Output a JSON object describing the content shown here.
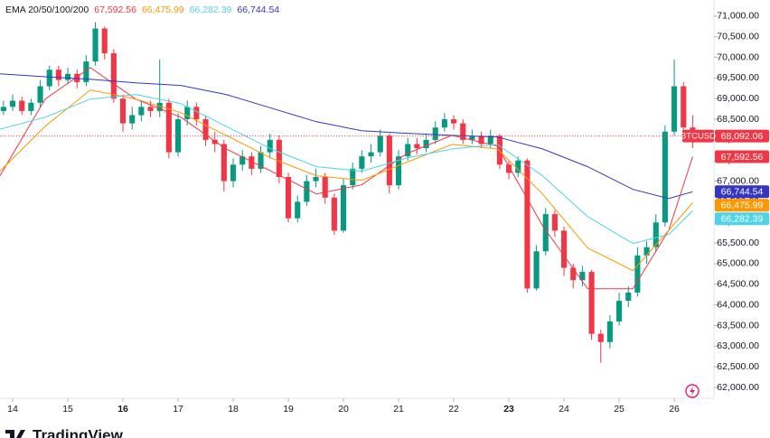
{
  "chart_data": {
    "type": "candlestick",
    "symbol": "BTCUSD",
    "indicator": "EMA 20/50/100/200",
    "brand": "TradingView",
    "x": [
      13.833,
      14,
      14.167,
      14.333,
      14.5,
      14.667,
      14.833,
      15,
      15.167,
      15.333,
      15.5,
      15.667,
      15.833,
      16,
      16.167,
      16.333,
      16.5,
      16.667,
      16.833,
      17,
      17.167,
      17.333,
      17.5,
      17.667,
      17.833,
      18,
      18.167,
      18.333,
      18.5,
      18.667,
      18.833,
      19,
      19.167,
      19.333,
      19.5,
      19.667,
      19.833,
      20,
      20.167,
      20.333,
      20.5,
      20.667,
      20.833,
      21,
      21.167,
      21.333,
      21.5,
      21.667,
      21.833,
      22,
      22.167,
      22.333,
      22.5,
      22.667,
      22.833,
      23,
      23.167,
      23.333,
      23.5,
      23.667,
      23.833,
      24,
      24.167,
      24.333,
      24.5,
      24.667,
      24.833,
      25,
      25.167,
      25.333,
      25.5,
      25.667,
      25.833,
      26,
      26.167,
      26.333
    ],
    "open": [
      68700,
      68800,
      68950,
      68700,
      68900,
      69300,
      69700,
      69450,
      69600,
      69400,
      69900,
      70700,
      70100,
      69000,
      68400,
      68600,
      68800,
      68700,
      68900,
      67700,
      68500,
      68800,
      68500,
      68000,
      67900,
      67000,
      67400,
      67600,
      67300,
      67700,
      68000,
      67100,
      66100,
      66500,
      67000,
      67100,
      66600,
      65800,
      66900,
      67300,
      67600,
      67700,
      68100,
      66900,
      67600,
      67900,
      67800,
      68000,
      68300,
      68500,
      68400,
      68000,
      68100,
      67900,
      68100,
      67400,
      67200,
      67500,
      64400,
      65300,
      66200,
      65800,
      64900,
      64600,
      64800,
      63300,
      63100,
      63600,
      64100,
      64300,
      65200,
      65400,
      66000,
      68200,
      69300,
      68300
    ],
    "high": [
      68950,
      69100,
      69050,
      69000,
      69450,
      69800,
      69800,
      69750,
      69700,
      70050,
      70850,
      70750,
      70200,
      69100,
      68800,
      68950,
      68950,
      69950,
      69000,
      68650,
      68950,
      68900,
      68600,
      68200,
      68000,
      67550,
      67750,
      67700,
      67850,
      68150,
      68100,
      67200,
      66650,
      67150,
      67300,
      67200,
      66700,
      67050,
      67450,
      67750,
      67900,
      68250,
      68150,
      67750,
      68050,
      68050,
      68150,
      68450,
      68650,
      68600,
      68500,
      68250,
      68200,
      68250,
      68150,
      67500,
      67600,
      67550,
      65450,
      66350,
      66300,
      65900,
      65000,
      64950,
      64850,
      63400,
      63750,
      64300,
      64450,
      65400,
      65550,
      66200,
      68350,
      69950,
      69400,
      68600
    ],
    "low": [
      68600,
      68700,
      68600,
      68600,
      68800,
      69200,
      69300,
      69350,
      69250,
      69300,
      69800,
      69950,
      68900,
      68200,
      68250,
      68450,
      68550,
      68550,
      67550,
      67600,
      68350,
      68350,
      67850,
      67700,
      66750,
      66850,
      67250,
      67150,
      67200,
      67550,
      66950,
      66000,
      66000,
      66400,
      66850,
      66450,
      65700,
      65750,
      66800,
      67200,
      67450,
      67600,
      66700,
      66800,
      67500,
      67650,
      67700,
      67900,
      68200,
      68250,
      67900,
      67900,
      67800,
      67800,
      67300,
      67050,
      67100,
      64300,
      64350,
      65200,
      65650,
      64700,
      64400,
      64450,
      63150,
      62600,
      62950,
      63500,
      63950,
      64200,
      65000,
      65300,
      65900,
      68100,
      68150,
      67800
    ],
    "close": [
      68800,
      68950,
      68700,
      68900,
      69300,
      69700,
      69450,
      69600,
      69400,
      69900,
      70700,
      70100,
      69000,
      68400,
      68600,
      68800,
      68700,
      68900,
      67700,
      68500,
      68800,
      68500,
      68000,
      67900,
      67000,
      67400,
      67600,
      67300,
      67700,
      68000,
      67100,
      66100,
      66500,
      67000,
      67100,
      66600,
      65800,
      66900,
      67300,
      67600,
      67700,
      68100,
      66900,
      67600,
      67900,
      67800,
      68000,
      68300,
      68500,
      68400,
      68000,
      68100,
      67900,
      68100,
      67400,
      67200,
      67500,
      64400,
      65300,
      66200,
      65800,
      64900,
      64600,
      64800,
      63300,
      63100,
      63600,
      64100,
      64300,
      65200,
      65400,
      66000,
      68200,
      69300,
      68300,
      68092.06
    ],
    "value_labels": [
      null,
      null,
      null,
      null,
      null,
      null,
      null,
      null,
      null,
      null,
      null,
      null,
      null,
      null,
      null,
      null,
      null,
      null,
      null,
      null,
      null,
      null,
      null,
      null,
      null,
      null,
      null,
      null,
      null,
      null,
      null,
      null,
      null,
      null,
      null,
      null,
      null,
      null,
      null,
      null,
      null,
      null,
      null,
      null,
      null,
      null,
      null,
      null,
      null,
      null,
      null,
      null,
      null,
      null,
      null,
      null,
      null,
      null,
      null,
      null,
      null,
      null,
      null,
      null,
      null,
      null,
      null,
      null,
      null,
      null,
      null,
      null,
      null,
      null,
      null,
      "68,092.06"
    ],
    "up_color": "#089981",
    "down_color": "#f23645",
    "last_price_line": true,
    "series": [
      {
        "color": "#f23645",
        "x": [
          13.77,
          14.59,
          15.41,
          16.23,
          17.05,
          17.87,
          18.69,
          19.51,
          20.33,
          21.15,
          21.97,
          22.79,
          23.61,
          24.43,
          25.25,
          25.9,
          26.333
        ],
        "values": [
          67130,
          68990,
          69750,
          68990,
          68550,
          67780,
          67240,
          66690,
          66910,
          67670,
          68110,
          67850,
          65920,
          64390,
          64390,
          65810,
          67592.56
        ],
        "value_labels": [
          null,
          null,
          null,
          null,
          null,
          null,
          null,
          null,
          null,
          null,
          null,
          null,
          null,
          null,
          null,
          null,
          "67,592.56"
        ]
      },
      {
        "color": "#ff9800",
        "x": [
          13.77,
          14.59,
          15.41,
          16.23,
          17.05,
          17.87,
          18.69,
          19.51,
          20.33,
          21.15,
          21.97,
          22.79,
          23.61,
          24.43,
          25.25,
          25.9,
          26.333
        ],
        "values": [
          67240,
          68330,
          69210,
          68990,
          68660,
          68110,
          67560,
          67130,
          67020,
          67460,
          67890,
          67780,
          66690,
          65380,
          64830,
          65810,
          66475.99
        ],
        "value_labels": [
          null,
          null,
          null,
          null,
          null,
          null,
          null,
          null,
          null,
          null,
          null,
          null,
          null,
          null,
          null,
          null,
          "66,475.99"
        ]
      },
      {
        "color": "#4fd3e6",
        "x": [
          13.77,
          14.59,
          15.41,
          16.23,
          17.05,
          17.87,
          18.69,
          19.51,
          20.33,
          21.15,
          21.97,
          22.79,
          23.61,
          24.43,
          25.25,
          25.9,
          26.333
        ],
        "values": [
          68260,
          68550,
          68990,
          69100,
          68880,
          68330,
          67780,
          67350,
          67240,
          67560,
          67780,
          67890,
          67130,
          66140,
          65490,
          65710,
          66282.39
        ],
        "value_labels": [
          null,
          null,
          null,
          null,
          null,
          null,
          null,
          null,
          null,
          null,
          null,
          null,
          null,
          null,
          null,
          null,
          "66,282.39"
        ]
      },
      {
        "color": "#3535c4",
        "x": [
          13.77,
          14.59,
          15.41,
          16.23,
          17.05,
          17.87,
          18.69,
          19.51,
          20.33,
          21.15,
          21.97,
          22.79,
          23.61,
          24.43,
          25.25,
          25.9,
          26.333
        ],
        "values": [
          69600,
          69530,
          69470,
          69380,
          69320,
          69100,
          68770,
          68440,
          68220,
          68160,
          68110,
          68070,
          67780,
          67350,
          66800,
          66580,
          66744.54
        ],
        "value_labels": [
          null,
          null,
          null,
          null,
          null,
          null,
          null,
          null,
          null,
          null,
          null,
          null,
          null,
          null,
          null,
          null,
          "66,744.54"
        ]
      }
    ],
    "xlim": [
      13.77,
      26.72
    ],
    "ylim": [
      61760,
      71390
    ],
    "xticks": [
      14,
      15,
      16,
      17,
      18,
      19,
      20,
      21,
      22,
      23,
      24,
      25,
      26
    ],
    "bold_xticks": [
      16,
      23
    ],
    "yticks": [
      {
        "value": 62000,
        "label": "62,000.00"
      },
      {
        "value": 62500,
        "label": "62,500.00"
      },
      {
        "value": 63000,
        "label": "63,000.00"
      },
      {
        "value": 63500,
        "label": "63,500.00"
      },
      {
        "value": 64000,
        "label": "64,000.00"
      },
      {
        "value": 64500,
        "label": "64,500.00"
      },
      {
        "value": 65000,
        "label": "65,000.00"
      },
      {
        "value": 65500,
        "label": "65,500.00"
      },
      {
        "value": 66000,
        "label": "66,000.00"
      },
      {
        "value": 66500,
        "label": "66,500.00"
      },
      {
        "value": 67000,
        "label": "67,000.00"
      },
      {
        "value": 67500,
        "label": "67,500.00"
      },
      {
        "value": 68000,
        "label": "68,000.00"
      },
      {
        "value": 68500,
        "label": "68,500.00"
      },
      {
        "value": 69000,
        "label": "69,000.00"
      },
      {
        "value": 69500,
        "label": "69,500.00"
      },
      {
        "value": 70000,
        "label": "70,000.00"
      },
      {
        "value": 70500,
        "label": "70,500.00"
      },
      {
        "value": 71000,
        "label": "71,000.00"
      }
    ]
  }
}
